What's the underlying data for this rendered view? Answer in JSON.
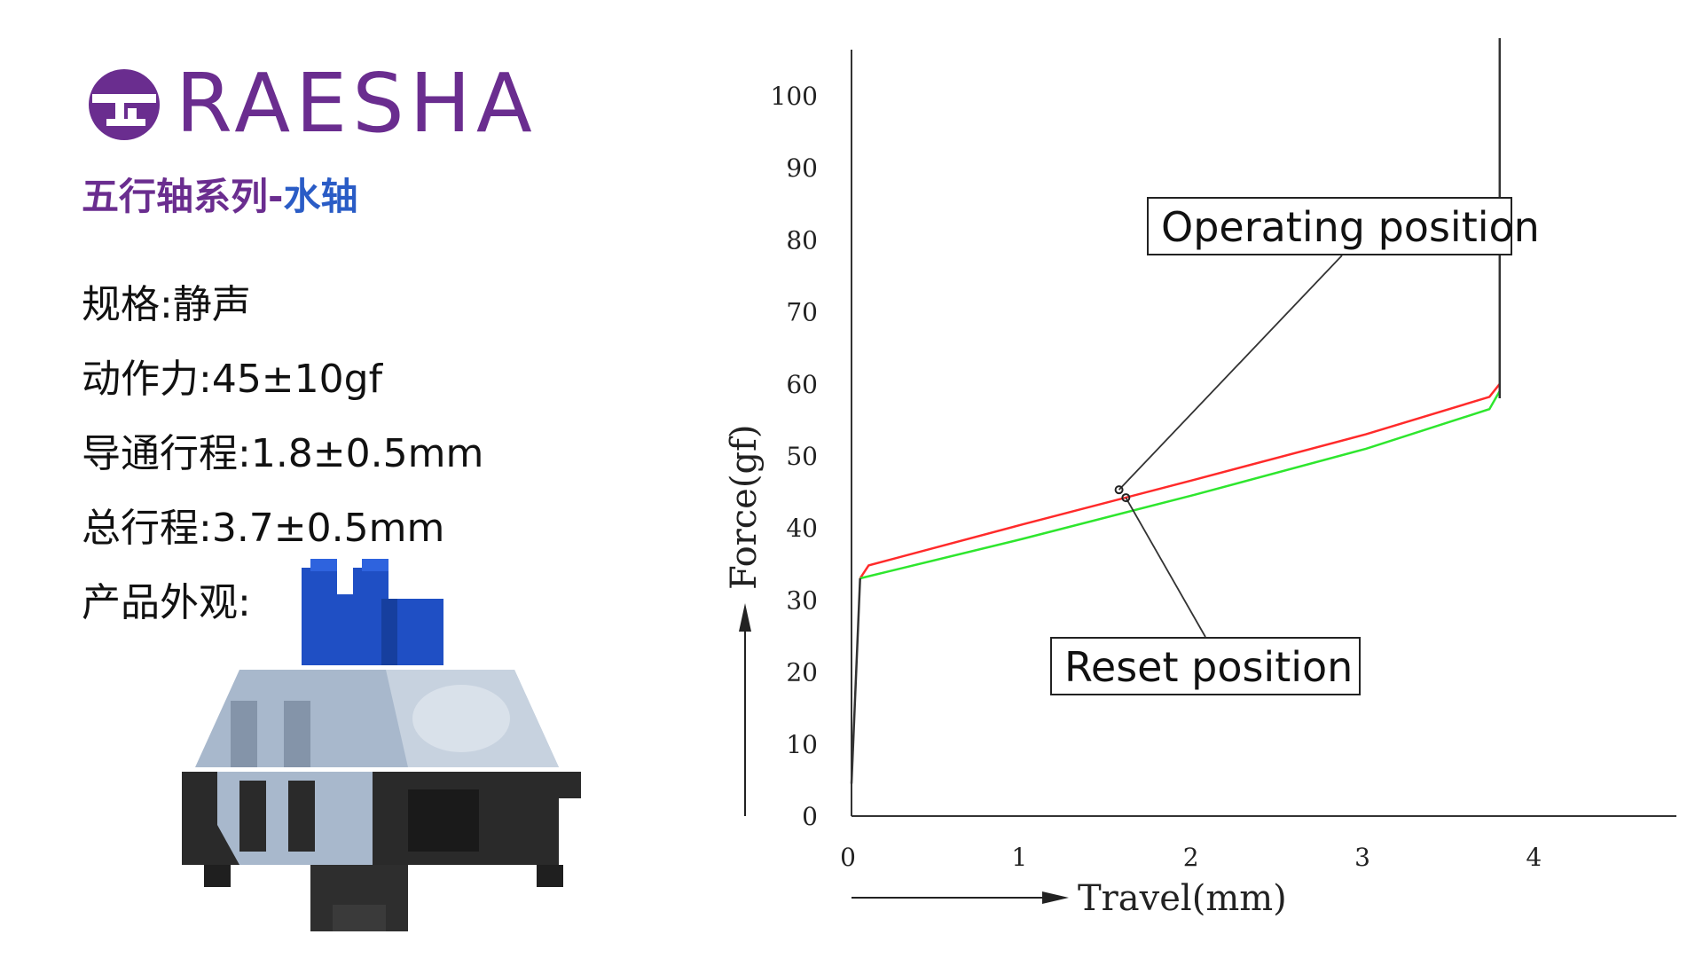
{
  "brand": {
    "name": "RAESHA",
    "colors": {
      "purple": "#6a2d8f",
      "blue": "#2a5cc6"
    }
  },
  "series_title": {
    "part1": "五行轴系列-",
    "part2": "水轴"
  },
  "specs": {
    "spec1": "规格:静声",
    "spec2": "动作力:45±10gf",
    "spec3": "导通行程:1.8±0.5mm",
    "spec4": "总行程:3.7±0.5mm",
    "spec5": "产品外观:"
  },
  "product_image": {
    "description_icon": "keyboard-switch-icon",
    "stem_color": "#1f4fc4",
    "housing_color": "#a3b3c6",
    "base_color": "#2a2a2a"
  },
  "chart_data": {
    "type": "line",
    "xlabel": "Travel(mm)",
    "ylabel": "Force(gf)",
    "xlim": [
      0,
      4.5
    ],
    "ylim": [
      0,
      100
    ],
    "x_ticks": [
      "0",
      "1",
      "2",
      "3",
      "4"
    ],
    "y_ticks": [
      "0",
      "10",
      "20",
      "30",
      "40",
      "50",
      "60",
      "70",
      "80",
      "90",
      "100"
    ],
    "grid": false,
    "series": [
      {
        "color": "#ff2a2a",
        "points": [
          [
            0.05,
            33
          ],
          [
            0.1,
            34.8
          ],
          [
            1.0,
            40.5
          ],
          [
            2.0,
            46.7
          ],
          [
            3.0,
            53
          ],
          [
            3.72,
            58.2
          ],
          [
            3.78,
            60
          ]
        ]
      },
      {
        "color": "#2ee62e",
        "points": [
          [
            0.05,
            33
          ],
          [
            1.0,
            38.5
          ],
          [
            2.0,
            44.6
          ],
          [
            3.0,
            51
          ],
          [
            3.72,
            56.5
          ],
          [
            3.78,
            59
          ]
        ]
      },
      {
        "color": "#333333",
        "points": [
          [
            0,
            4.5
          ],
          [
            0.05,
            33
          ]
        ]
      },
      {
        "color": "#333333",
        "points": [
          [
            3.78,
            58
          ],
          [
            3.78,
            108
          ]
        ]
      }
    ],
    "annotations": [
      {
        "text": "Operating position",
        "x": 1.56,
        "y": 45.3
      },
      {
        "text": "Reset position",
        "x": 1.6,
        "y": 44.2
      }
    ]
  }
}
